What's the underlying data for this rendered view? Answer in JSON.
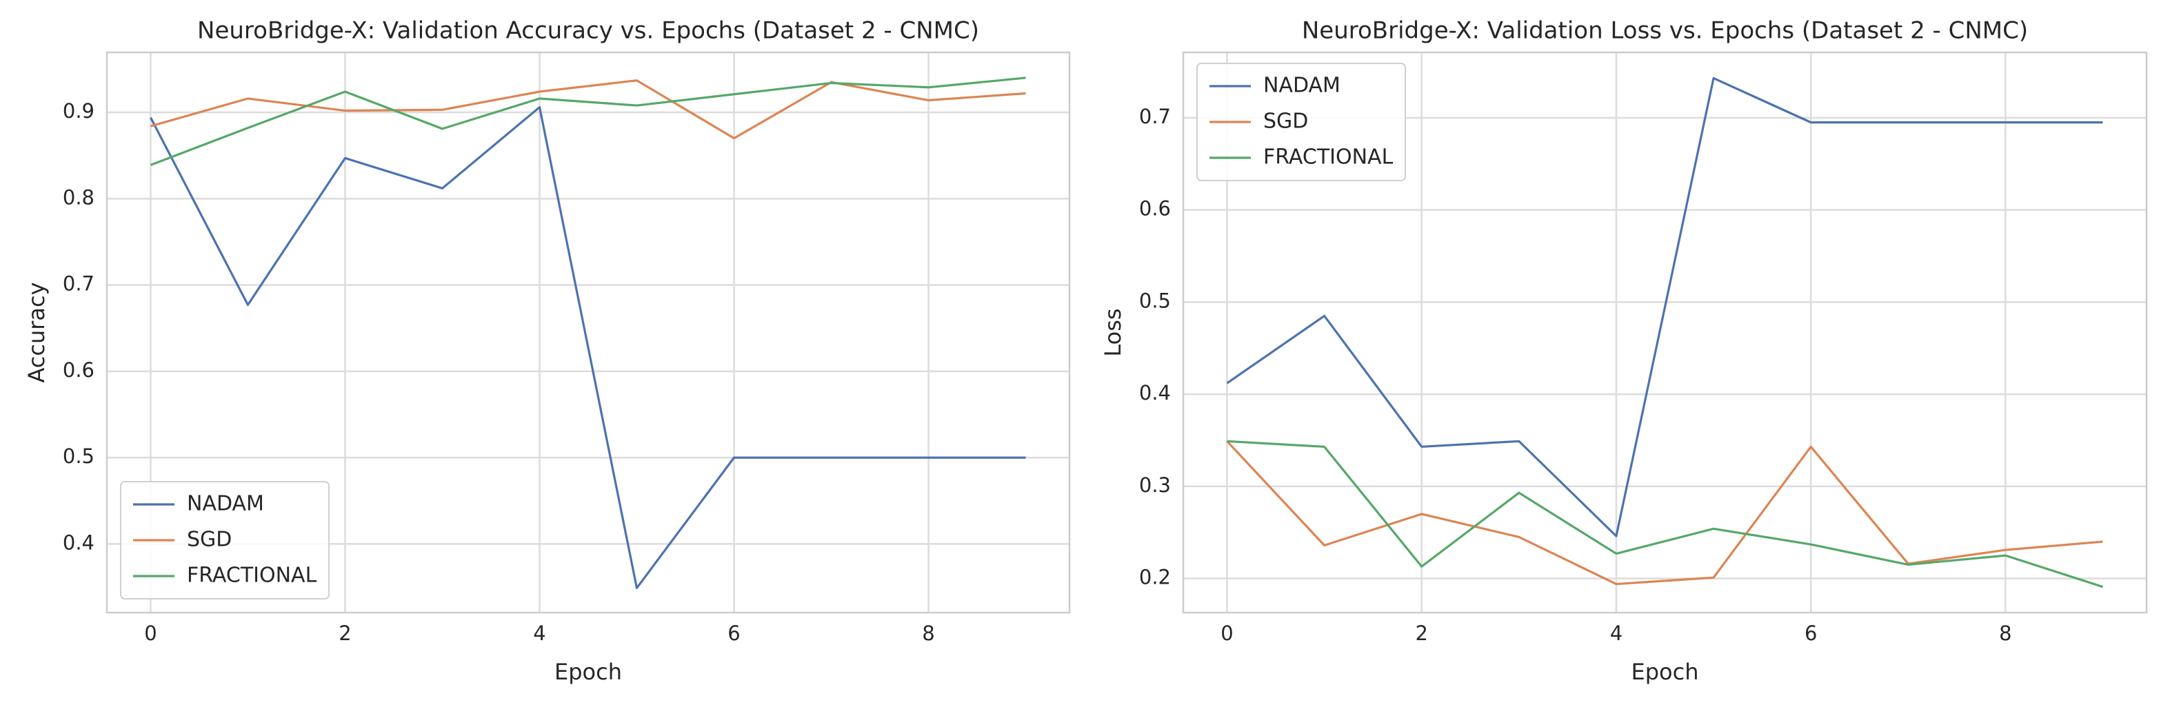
{
  "chart_data": [
    {
      "type": "line",
      "title": "NeuroBridge-X: Validation Accuracy vs. Epochs (Dataset 2 - CNMC)",
      "xlabel": "Epoch",
      "ylabel": "Accuracy",
      "x": [
        0,
        1,
        2,
        3,
        4,
        5,
        6,
        7,
        8,
        9
      ],
      "series": [
        {
          "name": "NADAM",
          "color": "#4c72b0",
          "values": [
            0.894,
            0.677,
            0.847,
            0.812,
            0.906,
            0.349,
            0.5,
            0.5,
            0.5,
            0.5
          ]
        },
        {
          "name": "SGD",
          "color": "#dd8452",
          "values": [
            0.884,
            0.916,
            0.902,
            0.903,
            0.924,
            0.937,
            0.87,
            0.935,
            0.914,
            0.922
          ]
        },
        {
          "name": "FRACTIONAL",
          "color": "#55a868",
          "values": [
            0.839,
            0.882,
            0.924,
            0.881,
            0.916,
            0.908,
            0.921,
            0.934,
            0.929,
            0.94
          ]
        }
      ],
      "xlim": [
        -0.45,
        9.45
      ],
      "xticks": [
        0,
        2,
        4,
        6,
        8
      ],
      "ylim": [
        0.3205,
        0.9695
      ],
      "yticks": [
        0.4,
        0.5,
        0.6,
        0.7,
        0.8,
        0.9
      ],
      "grid": true,
      "legend": "lower left"
    },
    {
      "type": "line",
      "title": "NeuroBridge-X: Validation Loss vs. Epochs (Dataset 2 - CNMC)",
      "xlabel": "Epoch",
      "ylabel": "Loss",
      "x": [
        0,
        1,
        2,
        3,
        4,
        5,
        6,
        7,
        8,
        9
      ],
      "series": [
        {
          "name": "NADAM",
          "color": "#4c72b0",
          "values": [
            0.412,
            0.485,
            0.343,
            0.349,
            0.246,
            0.743,
            0.695,
            0.695,
            0.695,
            0.695
          ]
        },
        {
          "name": "SGD",
          "color": "#dd8452",
          "values": [
            0.349,
            0.236,
            0.27,
            0.245,
            0.194,
            0.201,
            0.343,
            0.216,
            0.231,
            0.24
          ]
        },
        {
          "name": "FRACTIONAL",
          "color": "#55a868",
          "values": [
            0.349,
            0.343,
            0.213,
            0.293,
            0.227,
            0.254,
            0.237,
            0.215,
            0.225,
            0.191
          ]
        }
      ],
      "xlim": [
        -0.45,
        9.45
      ],
      "xticks": [
        0,
        2,
        4,
        6,
        8
      ],
      "ylim": [
        0.163,
        0.771
      ],
      "yticks": [
        0.2,
        0.3,
        0.4,
        0.5,
        0.6,
        0.7
      ],
      "grid": true,
      "legend": "upper left"
    }
  ]
}
